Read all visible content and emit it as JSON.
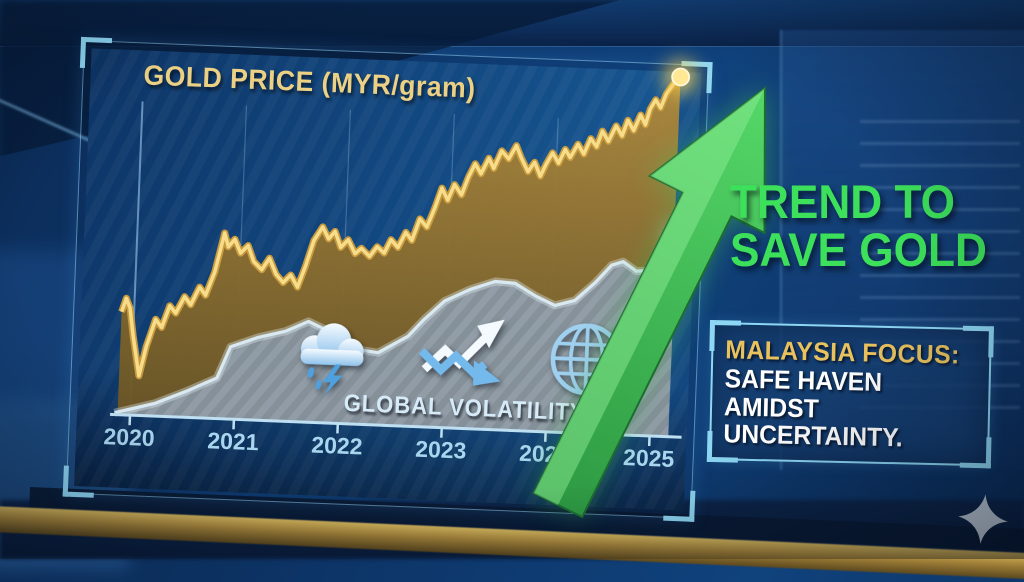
{
  "panel": {
    "title": "GOLD PRICE (MYR/gram)",
    "volatility_label": "GLOBAL VOLATILITY",
    "icons": [
      "storm-cloud-icon",
      "volatility-arrows-icon",
      "globe-icon"
    ]
  },
  "headline": {
    "line1": "TREND TO",
    "line2": "SAVE GOLD"
  },
  "focus_box": {
    "heading": "MALAYSIA FOCUS:",
    "lines": [
      "SAFE HAVEN",
      "AMIDST",
      "UNCERTAINTY."
    ]
  },
  "colors": {
    "gold_title": "#ecd084",
    "headline_green": "#3ce05a",
    "year_label": "#a9d6ef",
    "volatility_text": "#d6eaf7",
    "axis": "#bfe0f2",
    "gold_line": "#f7dc8a",
    "gold_line_under": "#c79a3e",
    "gold_fill_top": "#b08a3c",
    "gold_fill_bottom": "#6b5524",
    "vol_line": "#d8e9f2",
    "vol_fill_a": "#93a0ad",
    "vol_fill_b": "#86939f",
    "arrow_dark": "#2e9a43",
    "arrow_light": "#55d868",
    "arrow_bevel": "#8cec94",
    "arrow_outline": "#1c6e2f",
    "box_border": "#8ed7f4",
    "focus_heading": "#e9c25e",
    "focus_text": "#ffffff",
    "marker_gold": "#ffe794",
    "marker_blue": "#c3e9fc",
    "sparkle": "#c9d5df",
    "gridline": "#aad7fa"
  },
  "chart_data": {
    "type": "line",
    "title": "GOLD PRICE (MYR/gram)",
    "xlabel": "",
    "ylabel": "",
    "x_ticks": [
      2020,
      2021,
      2022,
      2023,
      2024,
      2025
    ],
    "xlim": [
      2019.85,
      2025.3
    ],
    "ylim": [
      0,
      105
    ],
    "grid": "vertical-only",
    "legend": "none",
    "y_axis_labels_visible": false,
    "value_scale_note": "no y-axis labels shown; values are a relative 0-100 index estimated from pixel positions",
    "series": [
      {
        "name": "Gold price (MYR/gram)",
        "type": "line-with-area",
        "marker_at_end": true,
        "points": [
          [
            2019.88,
            28.6
          ],
          [
            2019.92,
            32.4
          ],
          [
            2019.96,
            29.7
          ],
          [
            2020.0,
            22.0
          ],
          [
            2020.07,
            11.0
          ],
          [
            2020.13,
            19.2
          ],
          [
            2020.21,
            26.9
          ],
          [
            2020.27,
            24.7
          ],
          [
            2020.34,
            30.8
          ],
          [
            2020.4,
            28.8
          ],
          [
            2020.48,
            33.5
          ],
          [
            2020.54,
            31.3
          ],
          [
            2020.62,
            36.3
          ],
          [
            2020.68,
            34.1
          ],
          [
            2020.76,
            40.7
          ],
          [
            2020.84,
            51.6
          ],
          [
            2020.88,
            47.8
          ],
          [
            2020.94,
            50.0
          ],
          [
            2021.0,
            46.2
          ],
          [
            2021.07,
            48.4
          ],
          [
            2021.13,
            44.0
          ],
          [
            2021.21,
            41.8
          ],
          [
            2021.28,
            45.1
          ],
          [
            2021.35,
            40.7
          ],
          [
            2021.42,
            38.5
          ],
          [
            2021.49,
            40.7
          ],
          [
            2021.56,
            37.4
          ],
          [
            2021.63,
            43.4
          ],
          [
            2021.7,
            50.5
          ],
          [
            2021.78,
            54.4
          ],
          [
            2021.84,
            51.1
          ],
          [
            2021.9,
            53.3
          ],
          [
            2021.96,
            48.9
          ],
          [
            2022.03,
            51.1
          ],
          [
            2022.1,
            47.3
          ],
          [
            2022.16,
            48.9
          ],
          [
            2022.24,
            46.7
          ],
          [
            2022.31,
            49.5
          ],
          [
            2022.38,
            47.8
          ],
          [
            2022.44,
            51.6
          ],
          [
            2022.51,
            49.5
          ],
          [
            2022.58,
            53.8
          ],
          [
            2022.64,
            51.6
          ],
          [
            2022.71,
            57.7
          ],
          [
            2022.78,
            55.5
          ],
          [
            2022.85,
            61.0
          ],
          [
            2022.91,
            66.5
          ],
          [
            2022.97,
            63.2
          ],
          [
            2023.03,
            67.6
          ],
          [
            2023.1,
            64.8
          ],
          [
            2023.16,
            69.8
          ],
          [
            2023.22,
            73.6
          ],
          [
            2023.28,
            70.9
          ],
          [
            2023.35,
            75.3
          ],
          [
            2023.4,
            72.5
          ],
          [
            2023.47,
            77.5
          ],
          [
            2023.54,
            75.3
          ],
          [
            2023.61,
            79.1
          ],
          [
            2023.66,
            75.8
          ],
          [
            2023.73,
            72.0
          ],
          [
            2023.79,
            74.7
          ],
          [
            2023.85,
            70.9
          ],
          [
            2023.9,
            74.2
          ],
          [
            2023.96,
            77.5
          ],
          [
            2024.02,
            74.7
          ],
          [
            2024.08,
            78.6
          ],
          [
            2024.13,
            76.4
          ],
          [
            2024.2,
            80.2
          ],
          [
            2024.26,
            77.5
          ],
          [
            2024.32,
            81.9
          ],
          [
            2024.38,
            79.7
          ],
          [
            2024.43,
            84.1
          ],
          [
            2024.49,
            81.3
          ],
          [
            2024.56,
            85.7
          ],
          [
            2024.62,
            83.0
          ],
          [
            2024.67,
            87.4
          ],
          [
            2024.73,
            84.6
          ],
          [
            2024.79,
            89.0
          ],
          [
            2024.84,
            86.3
          ],
          [
            2024.88,
            90.7
          ],
          [
            2024.93,
            93.4
          ],
          [
            2024.98,
            91.2
          ],
          [
            2025.03,
            95.1
          ],
          [
            2025.08,
            97.3
          ],
          [
            2025.12,
            98.9
          ],
          [
            2025.16,
            100.0
          ]
        ]
      },
      {
        "name": "Global volatility",
        "type": "line-with-area",
        "marker_at_end": true,
        "points": [
          [
            2019.85,
            0.5
          ],
          [
            2020.24,
            3.6
          ],
          [
            2020.55,
            7.5
          ],
          [
            2020.82,
            11.3
          ],
          [
            2020.94,
            20.1
          ],
          [
            2021.2,
            23.0
          ],
          [
            2021.46,
            25.0
          ],
          [
            2021.68,
            28.0
          ],
          [
            2021.88,
            25.5
          ],
          [
            2022.12,
            20.9
          ],
          [
            2022.36,
            20.1
          ],
          [
            2022.64,
            25.0
          ],
          [
            2022.79,
            29.9
          ],
          [
            2022.98,
            35.2
          ],
          [
            2023.22,
            38.7
          ],
          [
            2023.46,
            41.2
          ],
          [
            2023.65,
            40.9
          ],
          [
            2023.85,
            37.6
          ],
          [
            2024.04,
            35.2
          ],
          [
            2024.23,
            36.8
          ],
          [
            2024.42,
            42.0
          ],
          [
            2024.57,
            47.0
          ],
          [
            2024.68,
            48.1
          ],
          [
            2024.81,
            45.6
          ],
          [
            2024.93,
            45.9
          ],
          [
            2025.03,
            50.0
          ],
          [
            2025.12,
            54.1
          ],
          [
            2025.18,
            56.0
          ]
        ]
      }
    ],
    "annotations": [
      {
        "type": "arrow",
        "meaning": "strong upward trend",
        "direction": "up-right"
      },
      {
        "type": "icon-group",
        "label": "GLOBAL VOLATILITY",
        "icons": [
          "storm-cloud",
          "volatility-arrows",
          "globe"
        ]
      }
    ]
  }
}
